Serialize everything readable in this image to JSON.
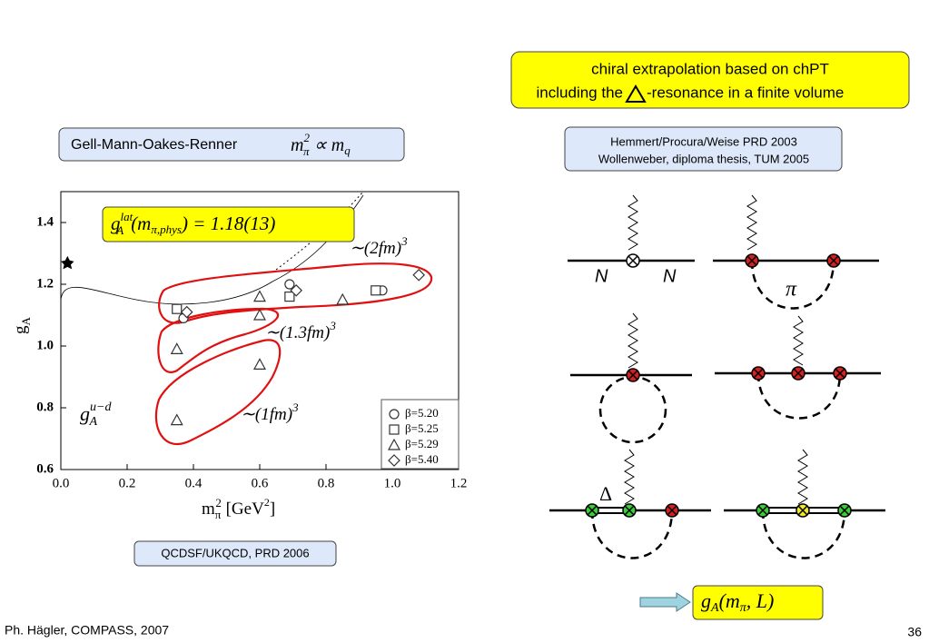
{
  "boxes": {
    "chiral": {
      "line1": "chiral extrapolation based on chPT",
      "line2a": "including the",
      "line2b": "-resonance in a finite volume"
    },
    "gmor": {
      "text": "Gell-Mann-Oakes-Renner",
      "m": "m",
      "msup": "2",
      "msub": "π",
      "prop": " ∝ m",
      "qsub": "q"
    },
    "refs": [
      "Hemmert/Procura/Weise PRD 2003",
      "Wollenweber, diploma thesis, TUM 2005"
    ],
    "source": "QCDSF/UKQCD, PRD 2006",
    "result": {
      "base": "g",
      "sub": "A",
      "rest": "(m",
      "sub2": "π",
      "end": ", L)"
    }
  },
  "diagrams": {
    "n1": "N",
    "n2": "N",
    "pi": "π",
    "delta": "Δ"
  },
  "footer": {
    "left": "Ph. Hägler, COMPASS, 2007",
    "page": "36"
  },
  "chart_data": {
    "type": "scatter",
    "xlabel": {
      "base": "m",
      "sub": "π",
      "sup": "2",
      "rest": " [GeV",
      "sup2": "2",
      "end": "]"
    },
    "ylabel": {
      "base": "g",
      "sub": "A"
    },
    "xlim": [
      0,
      1.2
    ],
    "ylim": [
      0.6,
      1.5
    ],
    "xticks": [
      {
        "value": 0,
        "label": "0.0"
      },
      0.2,
      0.4,
      0.6,
      0.8,
      {
        "value": 1,
        "label": "1.0"
      },
      1.2
    ],
    "yticks": [
      0.6,
      0.8,
      {
        "value": 1,
        "label": "1.0"
      },
      1.2,
      1.4
    ],
    "result_label": {
      "base": "g",
      "sup": "lat",
      "sub": "A",
      "arg": "(m",
      "argsub": "π,phys",
      "rest": ") = 1.18(13)"
    },
    "annotations": [
      {
        "text": "∼(2fm)",
        "sup": "3"
      },
      {
        "text": "∼(1.3fm)",
        "sup": "3"
      },
      {
        "text": "∼(1fm)",
        "sup": "3"
      }
    ],
    "gud": {
      "base": "g",
      "sup": "u−d",
      "sub": "A"
    },
    "series": [
      {
        "name": "β=5.20",
        "marker": "circle",
        "color": "#333333",
        "x": [
          0.37,
          0.69,
          0.97
        ],
        "values": [
          1.09,
          1.2,
          1.18
        ]
      },
      {
        "name": "β=5.25",
        "marker": "square",
        "color": "#333333",
        "x": [
          0.35,
          0.69,
          0.95
        ],
        "values": [
          1.12,
          1.16,
          1.18
        ]
      },
      {
        "name": "β=5.29",
        "marker": "triangle",
        "color": "#333333",
        "x": [
          0.35,
          0.35,
          0.6,
          0.6,
          0.6,
          0.85
        ],
        "values": [
          0.99,
          0.76,
          1.16,
          1.1,
          0.94,
          1.15
        ]
      },
      {
        "name": "β=5.40",
        "marker": "diamond",
        "color": "#333333",
        "x": [
          0.38,
          0.71,
          1.08
        ],
        "values": [
          1.11,
          1.18,
          1.23
        ]
      }
    ],
    "extra_points": {
      "marker": "star",
      "color": "#000000",
      "x": [
        0.02
      ],
      "values": [
        1.27
      ]
    }
  }
}
